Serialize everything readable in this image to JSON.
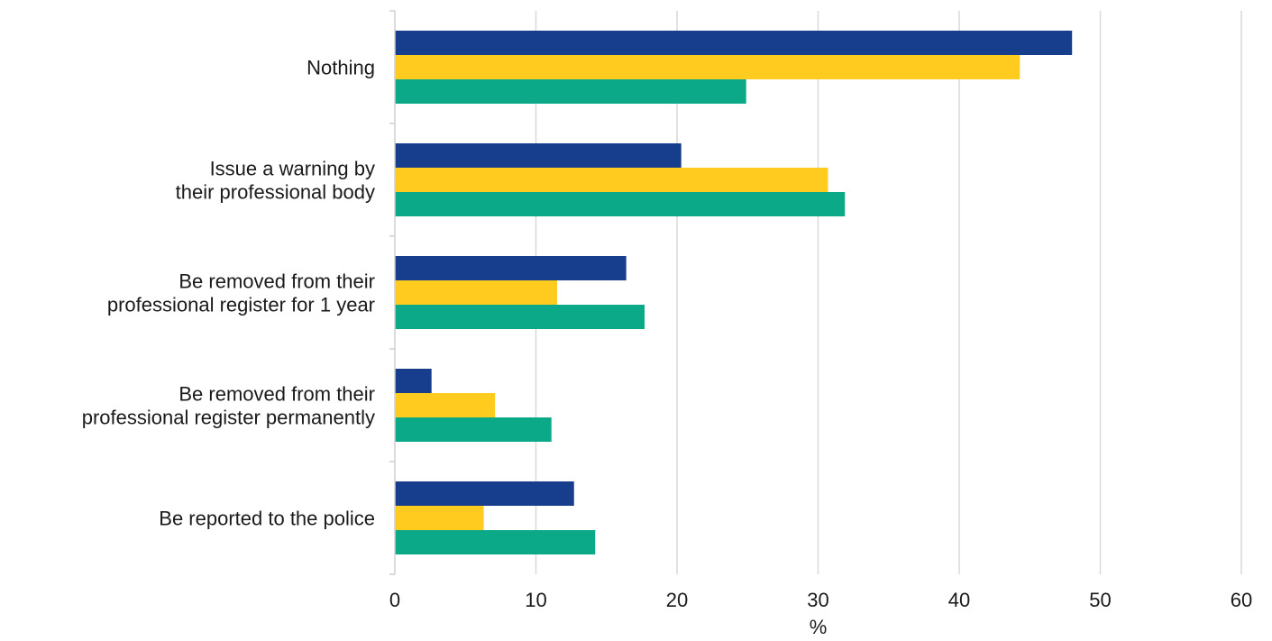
{
  "chart_data": {
    "type": "bar",
    "orientation": "horizontal",
    "categories": [
      [
        "Nothing"
      ],
      [
        "Issue a warning by",
        "their professional body"
      ],
      [
        "Be removed from their",
        "professional register for 1 year"
      ],
      [
        "Be removed from their",
        "professional register permanently"
      ],
      [
        "Be reported to the police"
      ]
    ],
    "series": [
      {
        "values": [
          48.0,
          20.3,
          16.4,
          2.6,
          12.7
        ],
        "color": "#163E8C"
      },
      {
        "values": [
          44.3,
          30.7,
          11.5,
          7.1,
          6.3
        ],
        "color": "#FFCB1F"
      },
      {
        "values": [
          24.9,
          31.9,
          17.7,
          11.1,
          14.2
        ],
        "color": "#0BA988"
      }
    ],
    "xlim": [
      0,
      60
    ],
    "xticks": [
      0,
      10,
      20,
      30,
      40,
      50,
      60
    ],
    "xlabel": "%",
    "grid": "vertical",
    "legend": "none"
  }
}
